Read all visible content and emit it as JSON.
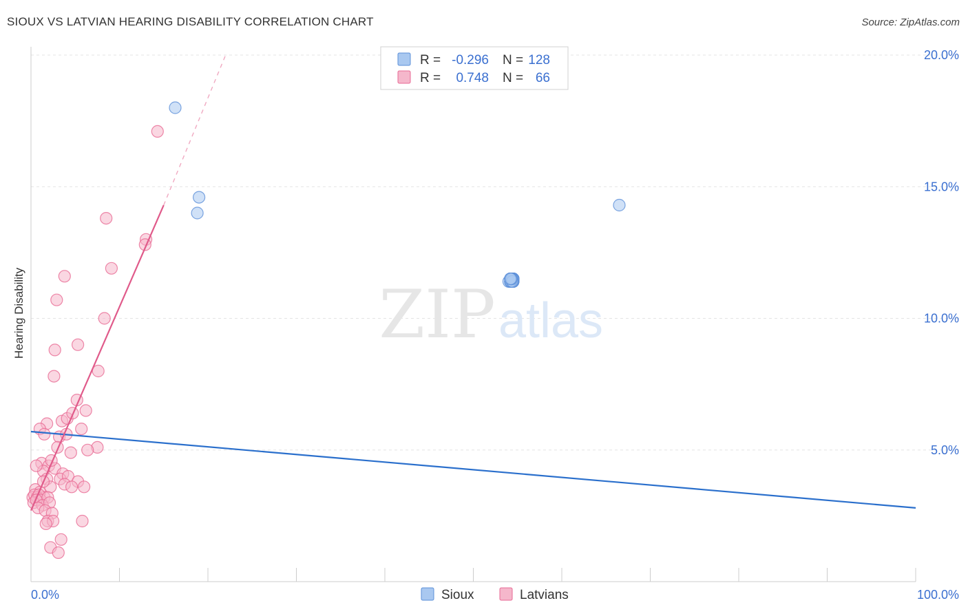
{
  "header": {
    "title": "SIOUX VS LATVIAN HEARING DISABILITY CORRELATION CHART",
    "source": "Source: ZipAtlas.com"
  },
  "watermark": {
    "zip": "ZIP",
    "atlas": "atlas"
  },
  "legend_top": {
    "rows": [
      {
        "r_label": "R =",
        "r_value": "-0.296",
        "n_label": "N =",
        "n_value": "128",
        "color": "#a9c8f0"
      },
      {
        "r_label": "R =",
        "r_value": "0.748",
        "n_label": "N =",
        "n_value": "66",
        "color": "#f5b7cb"
      }
    ]
  },
  "legend_bottom": {
    "items": [
      "Sioux",
      "Latvians"
    ]
  },
  "chart_data": {
    "type": "scatter",
    "ylabel": "Hearing Disability",
    "xlim": [
      0,
      100
    ],
    "ylim": [
      0,
      20
    ],
    "x_tick_labels": [
      "0.0%",
      "100.0%"
    ],
    "y_tick_labels": [
      "5.0%",
      "10.0%",
      "15.0%",
      "20.0%"
    ],
    "y_ticks": [
      5,
      10,
      15,
      20
    ],
    "grid": true,
    "colors": {
      "sioux": "#5b8fd8",
      "sioux_fill": "#a9c8f0",
      "latvians": "#e86a94",
      "latvians_fill": "#f5b7cb",
      "sioux_line": "#2a6fcc",
      "latvians_line": "#e05a8a",
      "tick_label": "#3a6fd0"
    },
    "series": [
      {
        "name": "Sioux",
        "trend": {
          "x": [
            0,
            100
          ],
          "y": [
            5.7,
            2.8
          ],
          "dashed": false
        },
        "points": [
          [
            16.3,
            18.0
          ],
          [
            19.0,
            14.6
          ],
          [
            18.8,
            14.0
          ],
          [
            66.5,
            14.3
          ],
          [
            54.5,
            11.5
          ],
          [
            54.5,
            11.5
          ],
          [
            54.0,
            11.4
          ],
          [
            54.2,
            11.5
          ],
          [
            54.3,
            11.4
          ],
          [
            54.4,
            11.5
          ],
          [
            54.3,
            11.5
          ],
          [
            54.2,
            11.5
          ],
          [
            54.4,
            11.5
          ],
          [
            54.5,
            11.4
          ],
          [
            54.3,
            11.5
          ],
          [
            54.4,
            11.5
          ],
          [
            54.2,
            11.4
          ],
          [
            54.3,
            11.5
          ],
          [
            54.4,
            11.4
          ],
          [
            54.3,
            11.4
          ],
          [
            54.5,
            11.5
          ],
          [
            54.3,
            11.5
          ],
          [
            54.4,
            11.5
          ],
          [
            54.2,
            11.5
          ],
          [
            54.3,
            11.4
          ],
          [
            54.4,
            11.5
          ],
          [
            54.5,
            11.5
          ],
          [
            54.3,
            11.5
          ],
          [
            54.3,
            11.4
          ],
          [
            54.4,
            11.5
          ],
          [
            54.2,
            11.5
          ],
          [
            54.3,
            11.5
          ],
          [
            54.4,
            11.4
          ],
          [
            54.3,
            11.5
          ],
          [
            54.5,
            11.5
          ],
          [
            54.2,
            11.4
          ],
          [
            54.3,
            11.5
          ],
          [
            54.4,
            11.5
          ],
          [
            54.3,
            11.5
          ],
          [
            54.4,
            11.4
          ],
          [
            54.3,
            11.5
          ],
          [
            54.2,
            11.5
          ],
          [
            54.5,
            11.5
          ],
          [
            54.3,
            11.4
          ],
          [
            54.4,
            11.5
          ],
          [
            54.3,
            11.5
          ],
          [
            54.2,
            11.5
          ],
          [
            54.4,
            11.5
          ],
          [
            54.3,
            11.4
          ],
          [
            54.5,
            11.5
          ],
          [
            54.3,
            11.5
          ],
          [
            54.4,
            11.5
          ],
          [
            54.2,
            11.4
          ],
          [
            54.3,
            11.5
          ],
          [
            54.4,
            11.5
          ],
          [
            54.3,
            11.5
          ],
          [
            54.5,
            11.4
          ],
          [
            54.3,
            11.5
          ],
          [
            54.4,
            11.5
          ],
          [
            54.2,
            11.5
          ],
          [
            54.3,
            11.4
          ],
          [
            54.4,
            11.5
          ],
          [
            54.3,
            11.5
          ],
          [
            54.5,
            11.5
          ],
          [
            54.2,
            11.4
          ],
          [
            54.3,
            11.5
          ],
          [
            54.4,
            11.5
          ],
          [
            54.3,
            11.5
          ],
          [
            54.4,
            11.4
          ],
          [
            54.3,
            11.5
          ],
          [
            54.2,
            11.5
          ],
          [
            54.5,
            11.5
          ],
          [
            54.3,
            11.4
          ],
          [
            54.4,
            11.5
          ],
          [
            54.3,
            11.5
          ],
          [
            54.2,
            11.5
          ],
          [
            54.4,
            11.5
          ],
          [
            54.3,
            11.4
          ],
          [
            54.5,
            11.5
          ],
          [
            54.3,
            11.5
          ],
          [
            54.4,
            11.5
          ],
          [
            54.2,
            11.4
          ],
          [
            54.3,
            11.5
          ],
          [
            54.4,
            11.5
          ],
          [
            54.3,
            11.5
          ],
          [
            54.5,
            11.4
          ],
          [
            54.3,
            11.5
          ],
          [
            54.4,
            11.5
          ],
          [
            54.2,
            11.5
          ],
          [
            54.3,
            11.4
          ],
          [
            54.4,
            11.5
          ],
          [
            54.3,
            11.5
          ],
          [
            54.5,
            11.5
          ],
          [
            54.2,
            11.4
          ],
          [
            54.3,
            11.5
          ],
          [
            54.4,
            11.5
          ],
          [
            54.3,
            11.5
          ],
          [
            54.4,
            11.4
          ],
          [
            54.3,
            11.5
          ],
          [
            54.2,
            11.5
          ],
          [
            54.5,
            11.5
          ],
          [
            54.3,
            11.4
          ],
          [
            54.4,
            11.5
          ],
          [
            54.3,
            11.5
          ],
          [
            54.2,
            11.5
          ],
          [
            54.4,
            11.5
          ],
          [
            54.3,
            11.4
          ],
          [
            54.5,
            11.5
          ],
          [
            54.3,
            11.5
          ],
          [
            54.4,
            11.5
          ],
          [
            54.2,
            11.4
          ],
          [
            54.3,
            11.5
          ],
          [
            54.4,
            11.5
          ],
          [
            54.3,
            11.5
          ],
          [
            54.5,
            11.4
          ],
          [
            54.3,
            11.5
          ],
          [
            54.4,
            11.5
          ],
          [
            54.2,
            11.5
          ],
          [
            54.3,
            11.4
          ],
          [
            54.4,
            11.5
          ],
          [
            54.3,
            11.5
          ],
          [
            54.5,
            11.5
          ],
          [
            54.2,
            11.4
          ],
          [
            54.3,
            11.5
          ],
          [
            54.4,
            11.5
          ],
          [
            54.3,
            11.5
          ],
          [
            54.4,
            11.4
          ],
          [
            54.3,
            11.5
          ],
          [
            54.2,
            11.5
          ]
        ]
      },
      {
        "name": "Latvians",
        "trend": {
          "x": [
            0,
            15,
            22
          ],
          "y": [
            2.7,
            14.3,
            20.0
          ],
          "dashed_from": 15
        },
        "points": [
          [
            14.3,
            17.1
          ],
          [
            8.5,
            13.8
          ],
          [
            13.0,
            13.0
          ],
          [
            12.9,
            12.8
          ],
          [
            9.1,
            11.9
          ],
          [
            3.8,
            11.6
          ],
          [
            2.9,
            10.7
          ],
          [
            8.3,
            10.0
          ],
          [
            2.7,
            8.8
          ],
          [
            5.3,
            9.0
          ],
          [
            2.6,
            7.8
          ],
          [
            7.6,
            8.0
          ],
          [
            5.2,
            6.9
          ],
          [
            1.8,
            6.0
          ],
          [
            3.5,
            6.1
          ],
          [
            4.1,
            6.2
          ],
          [
            4.7,
            6.4
          ],
          [
            6.2,
            6.5
          ],
          [
            1.0,
            5.8
          ],
          [
            1.5,
            5.6
          ],
          [
            3.2,
            5.5
          ],
          [
            4.0,
            5.6
          ],
          [
            5.7,
            5.8
          ],
          [
            7.5,
            5.1
          ],
          [
            3.0,
            5.1
          ],
          [
            4.5,
            4.9
          ],
          [
            6.4,
            5.0
          ],
          [
            1.2,
            4.5
          ],
          [
            2.0,
            4.4
          ],
          [
            2.7,
            4.3
          ],
          [
            1.4,
            4.2
          ],
          [
            3.6,
            4.1
          ],
          [
            1.8,
            3.9
          ],
          [
            3.3,
            3.9
          ],
          [
            4.2,
            4.0
          ],
          [
            5.3,
            3.8
          ],
          [
            2.2,
            3.6
          ],
          [
            3.8,
            3.7
          ],
          [
            4.6,
            3.6
          ],
          [
            6.0,
            3.6
          ],
          [
            0.5,
            3.5
          ],
          [
            1.0,
            3.4
          ],
          [
            1.5,
            3.2
          ],
          [
            0.2,
            3.2
          ],
          [
            0.4,
            3.3
          ],
          [
            0.7,
            3.2
          ],
          [
            0.9,
            3.3
          ],
          [
            1.1,
            3.1
          ],
          [
            1.9,
            3.2
          ],
          [
            0.3,
            3.0
          ],
          [
            0.6,
            3.1
          ],
          [
            1.3,
            2.9
          ],
          [
            2.1,
            3.0
          ],
          [
            0.8,
            2.8
          ],
          [
            1.6,
            2.7
          ],
          [
            2.4,
            2.6
          ],
          [
            1.9,
            2.3
          ],
          [
            2.5,
            2.3
          ],
          [
            5.8,
            2.3
          ],
          [
            1.7,
            2.2
          ],
          [
            3.4,
            1.6
          ],
          [
            2.2,
            1.3
          ],
          [
            3.1,
            1.1
          ],
          [
            1.4,
            3.8
          ],
          [
            0.6,
            4.4
          ],
          [
            2.3,
            4.6
          ]
        ]
      }
    ]
  }
}
